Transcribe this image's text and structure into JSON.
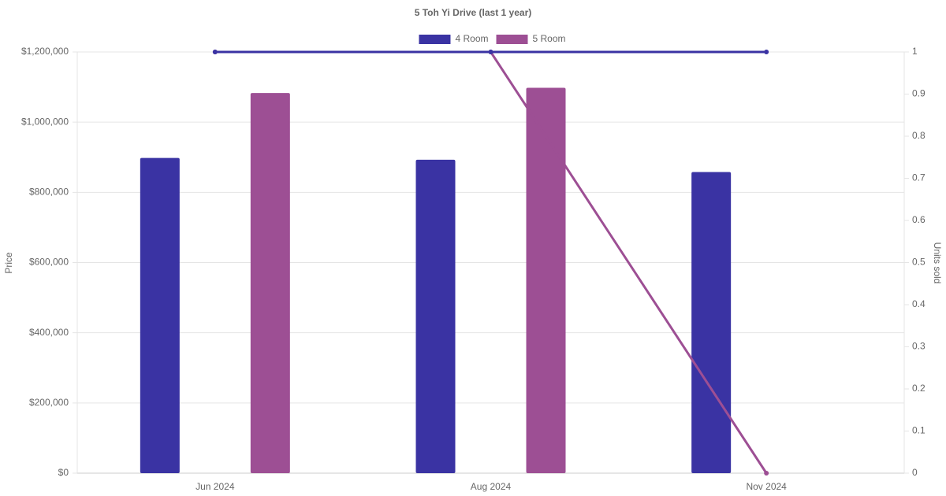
{
  "chart_data": {
    "type": "bar",
    "title": "5 Toh Yi Drive (last 1 year)",
    "categories": [
      "Jun 2024",
      "Aug 2024",
      "Nov 2024"
    ],
    "y_label": "Price",
    "y2_label": "Units sold",
    "series": [
      {
        "name": "4 Room",
        "type": "bar",
        "color": "#3a33a3",
        "values": [
          898000,
          893000,
          858000
        ]
      },
      {
        "name": "5 Room",
        "type": "bar",
        "color": "#9d4f94",
        "values": [
          1083000,
          1098000,
          null
        ]
      },
      {
        "type": "line",
        "axis": "y2",
        "color": "#9d4f94",
        "values": [
          1,
          1,
          0
        ]
      },
      {
        "type": "line",
        "axis": "y2",
        "color": "#3a33a3",
        "values": [
          1,
          1,
          1
        ]
      }
    ],
    "ylim": [
      0,
      1200000
    ],
    "yticks": [
      {
        "value": 0,
        "label": "$0"
      },
      {
        "value": 200000,
        "label": "$200,000"
      },
      {
        "value": 400000,
        "label": "$400,000"
      },
      {
        "value": 600000,
        "label": "$600,000"
      },
      {
        "value": 800000,
        "label": "$800,000"
      },
      {
        "value": 1000000,
        "label": "$1,000,000"
      },
      {
        "value": 1200000,
        "label": "$1,200,000"
      }
    ],
    "y2lim": [
      0,
      1
    ],
    "y2ticks": [
      0,
      0.1,
      0.2,
      0.3,
      0.4,
      0.5,
      0.6,
      0.7,
      0.8,
      0.9,
      1
    ],
    "grid": true,
    "legend": "top"
  }
}
